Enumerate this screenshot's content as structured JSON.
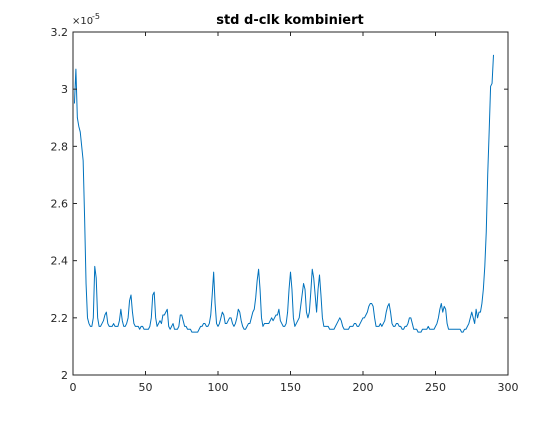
{
  "chart_data": {
    "type": "line",
    "title": "std d-clk kombiniert",
    "xlabel": "",
    "ylabel": "",
    "xlim": [
      0,
      300
    ],
    "ylim": [
      2.0,
      3.2
    ],
    "y_exponent_label": "×10",
    "y_exponent": "-5",
    "xticks": [
      "0",
      "50",
      "100",
      "150",
      "200",
      "250",
      "300"
    ],
    "yticks": [
      "2",
      "2.2",
      "2.4",
      "2.6",
      "2.8",
      "3",
      "3.2"
    ],
    "grid": false,
    "series": [
      {
        "color": "#0072bd",
        "points": [
          [
            1,
            2.95
          ],
          [
            2,
            3.07
          ],
          [
            3,
            2.9
          ],
          [
            4,
            2.87
          ],
          [
            5,
            2.85
          ],
          [
            6,
            2.8
          ],
          [
            7,
            2.75
          ],
          [
            8,
            2.55
          ],
          [
            9,
            2.32
          ],
          [
            10,
            2.2
          ],
          [
            11,
            2.18
          ],
          [
            12,
            2.17
          ],
          [
            13,
            2.17
          ],
          [
            14,
            2.2
          ],
          [
            15,
            2.38
          ],
          [
            16,
            2.34
          ],
          [
            17,
            2.2
          ],
          [
            18,
            2.17
          ],
          [
            19,
            2.17
          ],
          [
            20,
            2.18
          ],
          [
            21,
            2.19
          ],
          [
            22,
            2.21
          ],
          [
            23,
            2.22
          ],
          [
            24,
            2.18
          ],
          [
            25,
            2.17
          ],
          [
            26,
            2.17
          ],
          [
            27,
            2.17
          ],
          [
            28,
            2.18
          ],
          [
            29,
            2.17
          ],
          [
            30,
            2.17
          ],
          [
            31,
            2.17
          ],
          [
            32,
            2.19
          ],
          [
            33,
            2.23
          ],
          [
            34,
            2.19
          ],
          [
            35,
            2.17
          ],
          [
            36,
            2.17
          ],
          [
            37,
            2.18
          ],
          [
            38,
            2.2
          ],
          [
            39,
            2.26
          ],
          [
            40,
            2.28
          ],
          [
            41,
            2.22
          ],
          [
            42,
            2.18
          ],
          [
            43,
            2.17
          ],
          [
            44,
            2.17
          ],
          [
            45,
            2.17
          ],
          [
            46,
            2.16
          ],
          [
            47,
            2.17
          ],
          [
            48,
            2.17
          ],
          [
            49,
            2.16
          ],
          [
            50,
            2.16
          ],
          [
            51,
            2.16
          ],
          [
            52,
            2.16
          ],
          [
            53,
            2.17
          ],
          [
            54,
            2.2
          ],
          [
            55,
            2.28
          ],
          [
            56,
            2.29
          ],
          [
            57,
            2.2
          ],
          [
            58,
            2.17
          ],
          [
            59,
            2.18
          ],
          [
            60,
            2.19
          ],
          [
            61,
            2.18
          ],
          [
            62,
            2.21
          ],
          [
            63,
            2.21
          ],
          [
            64,
            2.22
          ],
          [
            65,
            2.23
          ],
          [
            66,
            2.17
          ],
          [
            67,
            2.16
          ],
          [
            68,
            2.17
          ],
          [
            69,
            2.18
          ],
          [
            70,
            2.16
          ],
          [
            71,
            2.16
          ],
          [
            72,
            2.16
          ],
          [
            73,
            2.17
          ],
          [
            74,
            2.21
          ],
          [
            75,
            2.21
          ],
          [
            76,
            2.19
          ],
          [
            77,
            2.17
          ],
          [
            78,
            2.17
          ],
          [
            79,
            2.16
          ],
          [
            80,
            2.16
          ],
          [
            81,
            2.16
          ],
          [
            82,
            2.15
          ],
          [
            83,
            2.15
          ],
          [
            84,
            2.15
          ],
          [
            85,
            2.15
          ],
          [
            86,
            2.15
          ],
          [
            87,
            2.16
          ],
          [
            88,
            2.17
          ],
          [
            89,
            2.17
          ],
          [
            90,
            2.18
          ],
          [
            91,
            2.18
          ],
          [
            92,
            2.17
          ],
          [
            93,
            2.17
          ],
          [
            94,
            2.18
          ],
          [
            95,
            2.21
          ],
          [
            96,
            2.28
          ],
          [
            97,
            2.36
          ],
          [
            98,
            2.25
          ],
          [
            99,
            2.18
          ],
          [
            100,
            2.17
          ],
          [
            101,
            2.18
          ],
          [
            102,
            2.2
          ],
          [
            103,
            2.22
          ],
          [
            104,
            2.21
          ],
          [
            105,
            2.18
          ],
          [
            106,
            2.18
          ],
          [
            107,
            2.19
          ],
          [
            108,
            2.2
          ],
          [
            109,
            2.2
          ],
          [
            110,
            2.18
          ],
          [
            111,
            2.17
          ],
          [
            112,
            2.18
          ],
          [
            113,
            2.2
          ],
          [
            114,
            2.23
          ],
          [
            115,
            2.22
          ],
          [
            116,
            2.19
          ],
          [
            117,
            2.17
          ],
          [
            118,
            2.16
          ],
          [
            119,
            2.16
          ],
          [
            120,
            2.17
          ],
          [
            121,
            2.18
          ],
          [
            122,
            2.18
          ],
          [
            123,
            2.2
          ],
          [
            124,
            2.22
          ],
          [
            125,
            2.23
          ],
          [
            126,
            2.27
          ],
          [
            127,
            2.33
          ],
          [
            128,
            2.37
          ],
          [
            129,
            2.3
          ],
          [
            130,
            2.2
          ],
          [
            131,
            2.17
          ],
          [
            132,
            2.18
          ],
          [
            133,
            2.18
          ],
          [
            134,
            2.18
          ],
          [
            135,
            2.18
          ],
          [
            136,
            2.19
          ],
          [
            137,
            2.2
          ],
          [
            138,
            2.19
          ],
          [
            139,
            2.2
          ],
          [
            140,
            2.21
          ],
          [
            141,
            2.21
          ],
          [
            142,
            2.23
          ],
          [
            143,
            2.19
          ],
          [
            144,
            2.18
          ],
          [
            145,
            2.17
          ],
          [
            146,
            2.17
          ],
          [
            147,
            2.18
          ],
          [
            148,
            2.22
          ],
          [
            149,
            2.3
          ],
          [
            150,
            2.36
          ],
          [
            151,
            2.3
          ],
          [
            152,
            2.2
          ],
          [
            153,
            2.17
          ],
          [
            154,
            2.18
          ],
          [
            155,
            2.19
          ],
          [
            156,
            2.2
          ],
          [
            157,
            2.24
          ],
          [
            158,
            2.28
          ],
          [
            159,
            2.32
          ],
          [
            160,
            2.3
          ],
          [
            161,
            2.22
          ],
          [
            162,
            2.2
          ],
          [
            163,
            2.22
          ],
          [
            164,
            2.29
          ],
          [
            165,
            2.37
          ],
          [
            166,
            2.34
          ],
          [
            167,
            2.28
          ],
          [
            168,
            2.22
          ],
          [
            169,
            2.3
          ],
          [
            170,
            2.35
          ],
          [
            171,
            2.28
          ],
          [
            172,
            2.2
          ],
          [
            173,
            2.17
          ],
          [
            174,
            2.17
          ],
          [
            175,
            2.17
          ],
          [
            176,
            2.17
          ],
          [
            177,
            2.16
          ],
          [
            178,
            2.16
          ],
          [
            179,
            2.16
          ],
          [
            180,
            2.16
          ],
          [
            181,
            2.17
          ],
          [
            182,
            2.18
          ],
          [
            183,
            2.19
          ],
          [
            184,
            2.2
          ],
          [
            185,
            2.19
          ],
          [
            186,
            2.17
          ],
          [
            187,
            2.16
          ],
          [
            188,
            2.16
          ],
          [
            189,
            2.16
          ],
          [
            190,
            2.16
          ],
          [
            191,
            2.17
          ],
          [
            192,
            2.17
          ],
          [
            193,
            2.17
          ],
          [
            194,
            2.18
          ],
          [
            195,
            2.18
          ],
          [
            196,
            2.17
          ],
          [
            197,
            2.17
          ],
          [
            198,
            2.18
          ],
          [
            199,
            2.19
          ],
          [
            200,
            2.2
          ],
          [
            201,
            2.2
          ],
          [
            202,
            2.21
          ],
          [
            203,
            2.22
          ],
          [
            204,
            2.24
          ],
          [
            205,
            2.25
          ],
          [
            206,
            2.25
          ],
          [
            207,
            2.24
          ],
          [
            208,
            2.2
          ],
          [
            209,
            2.17
          ],
          [
            210,
            2.17
          ],
          [
            211,
            2.17
          ],
          [
            212,
            2.18
          ],
          [
            213,
            2.17
          ],
          [
            214,
            2.18
          ],
          [
            215,
            2.19
          ],
          [
            216,
            2.22
          ],
          [
            217,
            2.24
          ],
          [
            218,
            2.25
          ],
          [
            219,
            2.22
          ],
          [
            220,
            2.18
          ],
          [
            221,
            2.17
          ],
          [
            222,
            2.17
          ],
          [
            223,
            2.18
          ],
          [
            224,
            2.18
          ],
          [
            225,
            2.17
          ],
          [
            226,
            2.17
          ],
          [
            227,
            2.16
          ],
          [
            228,
            2.16
          ],
          [
            229,
            2.17
          ],
          [
            230,
            2.17
          ],
          [
            231,
            2.18
          ],
          [
            232,
            2.2
          ],
          [
            233,
            2.2
          ],
          [
            234,
            2.18
          ],
          [
            235,
            2.16
          ],
          [
            236,
            2.16
          ],
          [
            237,
            2.16
          ],
          [
            238,
            2.15
          ],
          [
            239,
            2.15
          ],
          [
            240,
            2.15
          ],
          [
            241,
            2.16
          ],
          [
            242,
            2.16
          ],
          [
            243,
            2.16
          ],
          [
            244,
            2.16
          ],
          [
            245,
            2.17
          ],
          [
            246,
            2.16
          ],
          [
            247,
            2.16
          ],
          [
            248,
            2.16
          ],
          [
            249,
            2.16
          ],
          [
            250,
            2.17
          ],
          [
            251,
            2.18
          ],
          [
            252,
            2.2
          ],
          [
            253,
            2.23
          ],
          [
            254,
            2.25
          ],
          [
            255,
            2.22
          ],
          [
            256,
            2.24
          ],
          [
            257,
            2.23
          ],
          [
            258,
            2.18
          ],
          [
            259,
            2.16
          ],
          [
            260,
            2.16
          ],
          [
            261,
            2.16
          ],
          [
            262,
            2.16
          ],
          [
            263,
            2.16
          ],
          [
            264,
            2.16
          ],
          [
            265,
            2.16
          ],
          [
            266,
            2.16
          ],
          [
            267,
            2.16
          ],
          [
            268,
            2.15
          ],
          [
            269,
            2.15
          ],
          [
            270,
            2.16
          ],
          [
            271,
            2.16
          ],
          [
            272,
            2.17
          ],
          [
            273,
            2.18
          ],
          [
            274,
            2.2
          ],
          [
            275,
            2.22
          ],
          [
            276,
            2.2
          ],
          [
            277,
            2.18
          ],
          [
            278,
            2.23
          ],
          [
            279,
            2.2
          ],
          [
            280,
            2.22
          ],
          [
            281,
            2.22
          ],
          [
            282,
            2.25
          ],
          [
            283,
            2.3
          ],
          [
            284,
            2.38
          ],
          [
            285,
            2.5
          ],
          [
            286,
            2.7
          ],
          [
            287,
            2.85
          ],
          [
            288,
            3.01
          ],
          [
            289,
            3.02
          ],
          [
            290,
            3.12
          ]
        ]
      }
    ]
  }
}
